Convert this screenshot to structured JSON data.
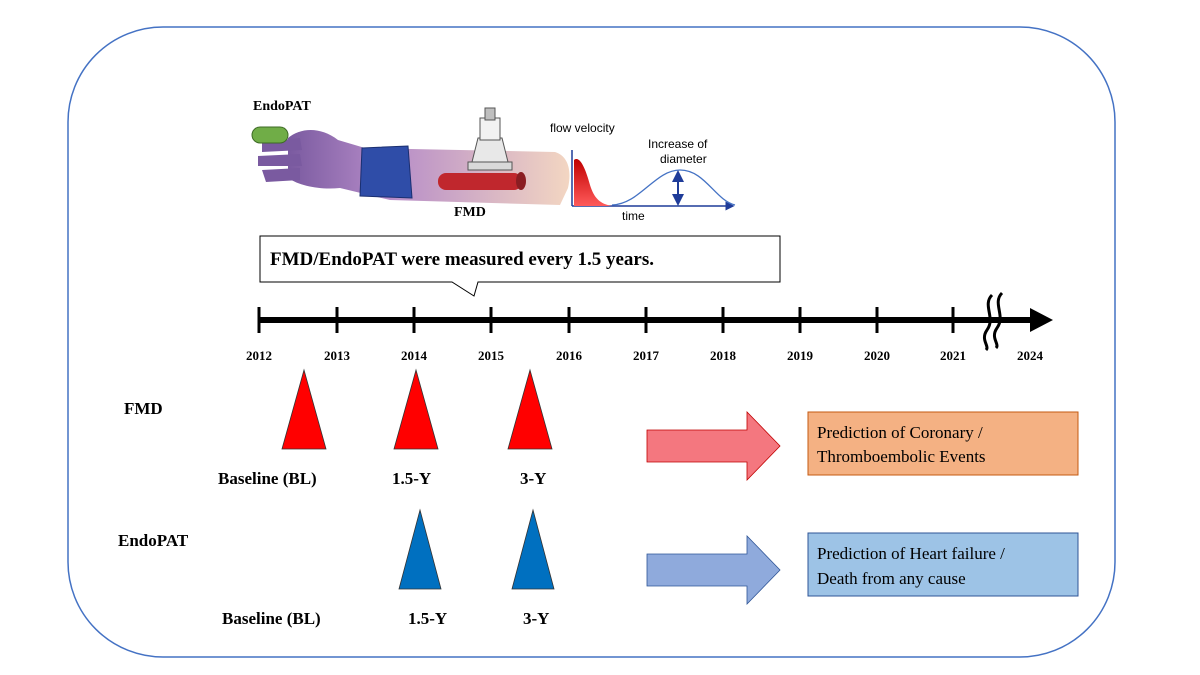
{
  "illustration": {
    "endopat_label": "EndoPAT",
    "fmd_label": "FMD",
    "flow_velocity_label": "flow velocity",
    "increase_line1": "Increase of",
    "increase_line2": "diameter",
    "time_label": "time"
  },
  "callout": {
    "text": "FMD/EndoPAT were measured every 1.5 years."
  },
  "timeline": {
    "years": [
      "2012",
      "2013",
      "2014",
      "2015",
      "2016",
      "2017",
      "2018",
      "2019",
      "2020",
      "2021",
      "2024"
    ]
  },
  "fmd": {
    "row_label": "FMD",
    "markers": [
      "Baseline (BL)",
      "1.5-Y",
      "3-Y"
    ],
    "color": "#ff0000",
    "outcome_line1": "Prediction of Coronary /",
    "outcome_line2": "Thromboembolic Events",
    "outcome_fill": "#f4b183",
    "arrow_fill": "#f4777f"
  },
  "endopat": {
    "row_label": "EndoPAT",
    "markers": [
      "Baseline (BL)",
      "1.5-Y",
      "3-Y"
    ],
    "color": "#0070c0",
    "outcome_line1": "Prediction of Heart failure /",
    "outcome_line2": "Death from any cause",
    "outcome_fill": "#9dc3e6",
    "arrow_fill": "#8faadc"
  },
  "colors": {
    "frame": "#4472c4",
    "timeline": "#000000"
  }
}
